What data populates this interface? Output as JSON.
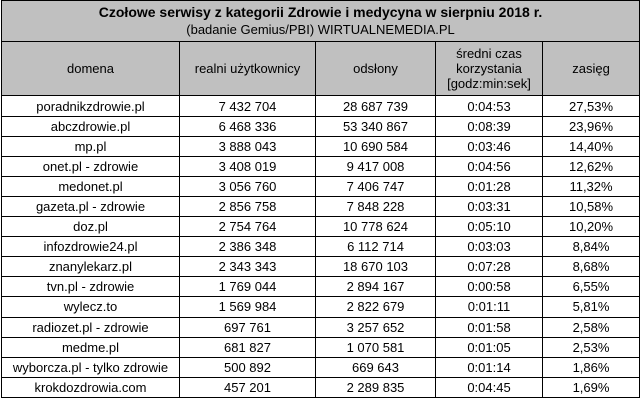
{
  "table": {
    "title": "Czołowe serwisy z kategorii Zdrowie i medycyna w sierpniu 2018 r.",
    "subtitle": "(badanie Gemius/PBI) WIRTUALNEMEDIA.PL",
    "headers": {
      "domain": "domena",
      "users": "realni użytkownicy",
      "views": "odsłony",
      "time_line1": "średni czas",
      "time_line2": "korzystania",
      "time_line3": "[godz:min:sek]",
      "reach": "zasięg"
    },
    "rows": [
      {
        "domain": "poradnikzdrowie.pl",
        "users": "7 432 704",
        "views": "28 687 739",
        "time": "0:04:53",
        "reach": "27,53%"
      },
      {
        "domain": "abczdrowie.pl",
        "users": "6 468 336",
        "views": "53 340 867",
        "time": "0:08:39",
        "reach": "23,96%"
      },
      {
        "domain": "mp.pl",
        "users": "3 888 043",
        "views": "10 690 584",
        "time": "0:03:46",
        "reach": "14,40%"
      },
      {
        "domain": "onet.pl - zdrowie",
        "users": "3 408 019",
        "views": "9 417 008",
        "time": "0:04:56",
        "reach": "12,62%"
      },
      {
        "domain": "medonet.pl",
        "users": "3 056 760",
        "views": "7 406 747",
        "time": "0:01:28",
        "reach": "11,32%"
      },
      {
        "domain": "gazeta.pl - zdrowie",
        "users": "2 856 758",
        "views": "7 848 228",
        "time": "0:03:31",
        "reach": "10,58%"
      },
      {
        "domain": "doz.pl",
        "users": "2 754 764",
        "views": "10 778 624",
        "time": "0:05:10",
        "reach": "10,20%"
      },
      {
        "domain": "infozdrowie24.pl",
        "users": "2 386 348",
        "views": "6 112 714",
        "time": "0:03:03",
        "reach": "8,84%"
      },
      {
        "domain": "znanylekarz.pl",
        "users": "2 343 343",
        "views": "18 670 103",
        "time": "0:07:28",
        "reach": "8,68%"
      },
      {
        "domain": "tvn.pl - zdrowie",
        "users": "1 769 044",
        "views": "2 894 167",
        "time": "0:00:58",
        "reach": "6,55%"
      },
      {
        "domain": "wylecz.to",
        "users": "1 569 984",
        "views": "2 822 679",
        "time": "0:01:11",
        "reach": "5,81%"
      },
      {
        "domain": "radiozet.pl - zdrowie",
        "users": "697 761",
        "views": "3 257 652",
        "time": "0:01:58",
        "reach": "2,58%"
      },
      {
        "domain": "medme.pl",
        "users": "681 827",
        "views": "1 070 581",
        "time": "0:01:05",
        "reach": "2,53%"
      },
      {
        "domain": "wyborcza.pl - tylko zdrowie",
        "users": "500 892",
        "views": "669 643",
        "time": "0:01:14",
        "reach": "1,86%"
      },
      {
        "domain": "krokdozdrowia.com",
        "users": "457 201",
        "views": "2 289 835",
        "time": "0:04:45",
        "reach": "1,69%"
      }
    ]
  },
  "colors": {
    "header_background": "#c0c0c0",
    "grid": "#000000",
    "cell_background": "#ffffff"
  }
}
